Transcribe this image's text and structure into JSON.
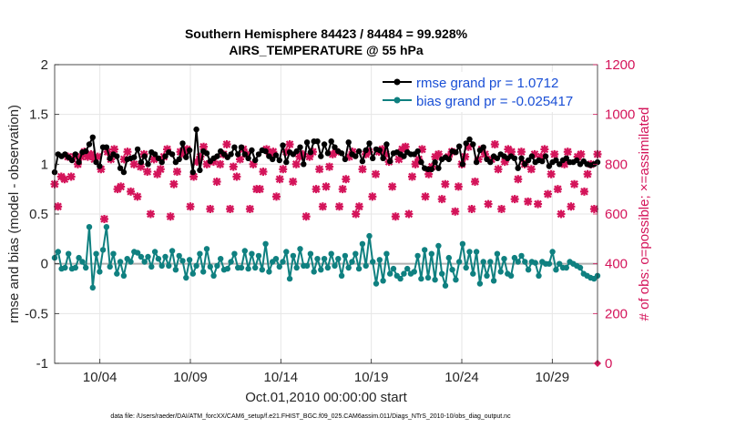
{
  "chart_data": {
    "type": "line",
    "title_line1": "Southern Hemisphere 84423 / 84484 = 99.928%",
    "title_line2": "AIRS_TEMPERATURE @ 55 hPa",
    "xlabel": "Oct.01,2010 00:00:00 start",
    "ylabel_left": "rmse and bias (model - observation)",
    "ylabel_right": "# of obs: o=possible; ×=assimilated",
    "footer": "data file: /Users/raeder/DAI/ATM_forcXX/CAM6_setup/f.e21.FHIST_BGC.f09_025.CAM6assim.011/Diags_NTrS_2010-10/obs_diag_output.nc",
    "x_day_range": [
      1.5,
      31.5
    ],
    "ylim_left": [
      -1,
      2
    ],
    "ylim_right": [
      0,
      1200
    ],
    "x_ticks": [
      {
        "day": 4,
        "label": "10/04"
      },
      {
        "day": 9,
        "label": "10/09"
      },
      {
        "day": 14,
        "label": "10/14"
      },
      {
        "day": 19,
        "label": "10/19"
      },
      {
        "day": 24,
        "label": "10/24"
      },
      {
        "day": 29,
        "label": "10/29"
      }
    ],
    "y_ticks_left": [
      "-1",
      "-0.5",
      "0",
      "0.5",
      "1",
      "1.5",
      "2"
    ],
    "y_ticks_left_values": [
      -1,
      -0.5,
      0,
      0.5,
      1,
      1.5,
      2
    ],
    "y_ticks_right": [
      "0",
      "200",
      "400",
      "600",
      "800",
      "1000",
      "1200"
    ],
    "y_ticks_right_values": [
      0,
      200,
      400,
      600,
      800,
      1000,
      1200
    ],
    "grid": true,
    "legend_position": "top-right",
    "colors": {
      "rmse": "#000000",
      "bias": "#0f8080",
      "obs": "#d4145a",
      "zero_line": "#b0b0b0",
      "legend_text": "#1a4fd6"
    },
    "x_start_day": 1.5,
    "x_step_day": 0.25,
    "series": [
      {
        "name": "rmse grand pr = 1.0712",
        "values": [
          0.92,
          1.1,
          1.08,
          1.1,
          1.07,
          1.04,
          1.1,
          1.02,
          1.12,
          1.13,
          1.2,
          1.27,
          1.02,
          0.98,
          1.17,
          1.17,
          1.06,
          1.1,
          1.08,
          0.96,
          0.92,
          1.05,
          1.06,
          1.07,
          1.15,
          1.02,
          1.08,
          1.0,
          1.12,
          1.1,
          1.06,
          1.02,
          1.08,
          1.12,
          1.1,
          1.02,
          1.05,
          1.21,
          1.07,
          1.14,
          0.92,
          1.35,
          0.94,
          1.13,
          1.11,
          1.03,
          1.06,
          1.08,
          1.13,
          1.1,
          1.07,
          1.1,
          1.17,
          1.1,
          1.17,
          1.1,
          1.06,
          1.14,
          1.04,
          1.1,
          1.14,
          1.13,
          1.08,
          1.05,
          1.09,
          1.04,
          1.19,
          1.02,
          1.12,
          1.1,
          1.13,
          1.17,
          1.0,
          1.22,
          1.12,
          1.23,
          1.23,
          1.08,
          1.2,
          1.11,
          1.23,
          1.17,
          1.13,
          1.11,
          1.05,
          1.22,
          1.1,
          1.08,
          1.13,
          1.03,
          1.14,
          1.21,
          1.06,
          1.15,
          1.14,
          1.06,
          1.2,
          1.03,
          1.11,
          1.12,
          1.1,
          1.08,
          1.12,
          1.1,
          1.1,
          1.13,
          1.02,
          0.96,
          0.95,
          0.95,
          1.02,
          0.96,
          1.05,
          1.07,
          1.05,
          1.13,
          1.12,
          1.18,
          1.0,
          1.21,
          1.25,
          1.2,
          1.02,
          1.14,
          1.17,
          1.05,
          1.02,
          1.08,
          1.06,
          1.1,
          1.08,
          1.06,
          1.08,
          1.06,
          0.96,
          1.06,
          1.0,
          1.04,
          1.08,
          1.02,
          1.04,
          1.03,
          1.08,
          0.98,
          1.02,
          1.04,
          1.0,
          1.04,
          1.06,
          1.02,
          1.02,
          1.04,
          1.0,
          1.03,
          1.0,
          0.99,
          1.0,
          1.02
        ]
      },
      {
        "name": "bias grand pr = -0.025417",
        "values": [
          0.06,
          0.12,
          -0.05,
          -0.04,
          0.1,
          -0.05,
          -0.04,
          0.06,
          0.02,
          -0.04,
          0.37,
          -0.24,
          0.1,
          -0.08,
          0.14,
          0.37,
          -0.03,
          0.1,
          -0.1,
          0.02,
          -0.12,
          0.05,
          0.02,
          0.12,
          0.11,
          0.07,
          0.02,
          0.07,
          -0.03,
          0.12,
          0.05,
          -0.02,
          0.07,
          -0.02,
          0.13,
          -0.06,
          0.08,
          0.03,
          -0.14,
          0.04,
          -0.1,
          -0.02,
          0.1,
          -0.08,
          0.15,
          -0.03,
          -0.12,
          -0.02,
          0.05,
          -0.06,
          -0.05,
          0.02,
          0.1,
          -0.04,
          -0.04,
          0.13,
          -0.05,
          0.1,
          -0.04,
          0.08,
          -0.06,
          0.2,
          -0.08,
          0.02,
          0.05,
          -0.03,
          0.02,
          0.12,
          -0.15,
          0.08,
          -0.04,
          0.15,
          -0.02,
          -0.02,
          0.1,
          -0.08,
          0.05,
          -0.06,
          0.05,
          -0.04,
          0.1,
          -0.02,
          0.05,
          -0.12,
          0.08,
          -0.04,
          0.02,
          0.1,
          -0.05,
          0.2,
          -0.02,
          0.28,
          0.02,
          -0.2,
          0.04,
          -0.17,
          0.1,
          -0.1,
          -0.05,
          -0.12,
          -0.15,
          -0.1,
          -0.05,
          -0.1,
          -0.08,
          0.08,
          -0.15,
          0.14,
          -0.14,
          0.1,
          -0.16,
          0.18,
          -0.1,
          -0.22,
          0.06,
          -0.06,
          -0.16,
          0.02,
          0.2,
          -0.04,
          0.12,
          -0.1,
          0.12,
          -0.2,
          0.02,
          -0.12,
          0.02,
          -0.17,
          0.1,
          -0.08,
          0.05,
          -0.1,
          -0.12,
          0.06,
          0.02,
          0.08,
          0.02,
          -0.06,
          0.02,
          0.01,
          -0.12,
          0.02,
          0.0,
          0.0,
          0.12,
          -0.06,
          0.0,
          -0.04,
          -0.04,
          0.02,
          0.0,
          -0.02,
          -0.04,
          -0.1,
          -0.12,
          -0.14,
          -0.15,
          -0.12
        ]
      },
      {
        "name": "assimilated obs",
        "axis": "right",
        "values": [
          720,
          630,
          750,
          740,
          830,
          750,
          830,
          800,
          830,
          850,
          830,
          840,
          820,
          830,
          780,
          580,
          850,
          820,
          860,
          700,
          710,
          820,
          850,
          690,
          800,
          670,
          790,
          840,
          770,
          600,
          820,
          760,
          780,
          830,
          860,
          590,
          720,
          770,
          850,
          840,
          860,
          630,
          750,
          810,
          830,
          870,
          800,
          620,
          810,
          730,
          800,
          840,
          880,
          620,
          790,
          750,
          820,
          860,
          840,
          620,
          800,
          700,
          700,
          770,
          860,
          840,
          850,
          670,
          740,
          780,
          850,
          880,
          730,
          800,
          830,
          840,
          590,
          830,
          850,
          700,
          780,
          630,
          710,
          790,
          840,
          850,
          630,
          700,
          740,
          830,
          850,
          600,
          630,
          780,
          840,
          850,
          670,
          760,
          850,
          860,
          840,
          810,
          710,
          590,
          820,
          860,
          870,
          600,
          750,
          800,
          820,
          860,
          670,
          760,
          790,
          830,
          840,
          660,
          720,
          830,
          850,
          610,
          710,
          800,
          830,
          870,
          620,
          730,
          820,
          860,
          840,
          640,
          820,
          880,
          780,
          620,
          810,
          860,
          850,
          660,
          740,
          850,
          800,
          650,
          780,
          840,
          640,
          830,
          860,
          680,
          760,
          840,
          700,
          600,
          800,
          850,
          630,
          720,
          830,
          840,
          690,
          760,
          800,
          620,
          840
        ]
      }
    ],
    "right_axis_extra_point": {
      "day": 31.5,
      "value": 0
    }
  },
  "legend": {
    "rmse_label": "rmse grand pr = 1.0712",
    "bias_label": "bias grand pr = -0.025417"
  }
}
